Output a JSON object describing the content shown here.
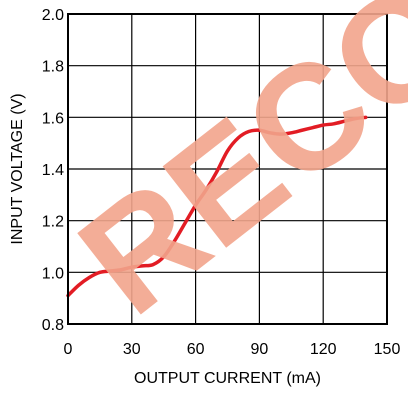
{
  "watermark": {
    "text": "RECOMMENDED FOR NEW DESIGNS",
    "color": "#f2a58c"
  },
  "chart_data": {
    "type": "line",
    "title": "",
    "xlabel": "OUTPUT CURRENT (mA)",
    "ylabel": "INPUT VOLTAGE (V)",
    "xlim": [
      0,
      150
    ],
    "ylim": [
      0.8,
      2.0
    ],
    "xticks": [
      0,
      30,
      60,
      90,
      120,
      150
    ],
    "xtick_labels": [
      "0",
      "30",
      "60",
      "90",
      "120",
      "150"
    ],
    "yticks": [
      0.8,
      1.0,
      1.2,
      1.4,
      1.6,
      1.8,
      2.0
    ],
    "ytick_labels": [
      "0.8",
      "1.0",
      "1.2",
      "1.4",
      "1.6",
      "1.8",
      "2.0"
    ],
    "grid": true,
    "series": [
      {
        "color": "#e21c24",
        "x": [
          0,
          5,
          10,
          15,
          20,
          25,
          30,
          35,
          40,
          45,
          50,
          55,
          60,
          65,
          70,
          75,
          80,
          85,
          90,
          95,
          100,
          105,
          110,
          115,
          120,
          125,
          130,
          135,
          140
        ],
        "y": [
          0.91,
          0.95,
          0.98,
          1.0,
          1.005,
          1.01,
          1.02,
          1.025,
          1.03,
          1.06,
          1.12,
          1.19,
          1.26,
          1.32,
          1.39,
          1.47,
          1.52,
          1.545,
          1.55,
          1.54,
          1.535,
          1.54,
          1.55,
          1.56,
          1.57,
          1.575,
          1.585,
          1.595,
          1.6
        ]
      }
    ]
  }
}
